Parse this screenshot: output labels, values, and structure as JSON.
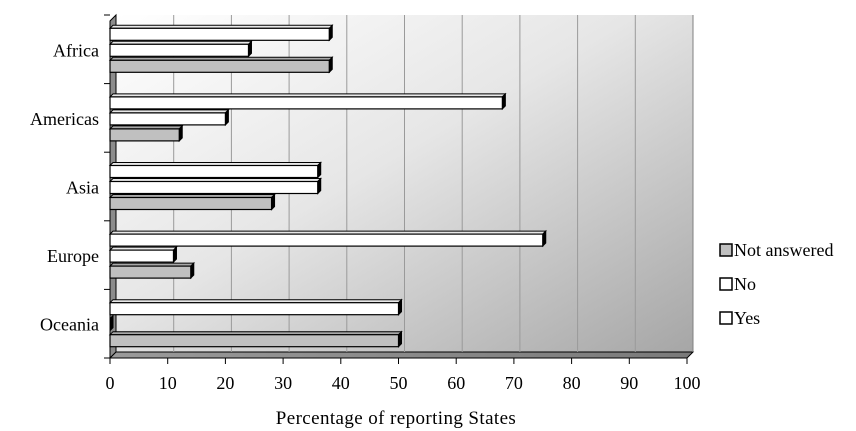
{
  "chart_data": {
    "type": "bar",
    "orientation": "horizontal",
    "three_d": true,
    "categories": [
      "Africa",
      "Americas",
      "Asia",
      "Europe",
      "Oceania"
    ],
    "series": [
      {
        "name": "Yes",
        "color": "#ffffff",
        "values": [
          38,
          68,
          36,
          75,
          50
        ]
      },
      {
        "name": "No",
        "color": "#ffffff",
        "values": [
          24,
          20,
          36,
          11,
          0
        ]
      },
      {
        "name": "Not answered",
        "color": "#c0c0c0",
        "values": [
          38,
          12,
          28,
          14,
          50
        ]
      }
    ],
    "xlabel": "Percentage of reporting States",
    "ylabel": "",
    "xlim": [
      0,
      100
    ],
    "xticks": [
      "0",
      "10",
      "20",
      "30",
      "40",
      "50",
      "60",
      "70",
      "80",
      "90",
      "100"
    ],
    "grid": true,
    "legend_position": "right",
    "legend_order": [
      "Not answered",
      "No",
      "Yes"
    ]
  }
}
